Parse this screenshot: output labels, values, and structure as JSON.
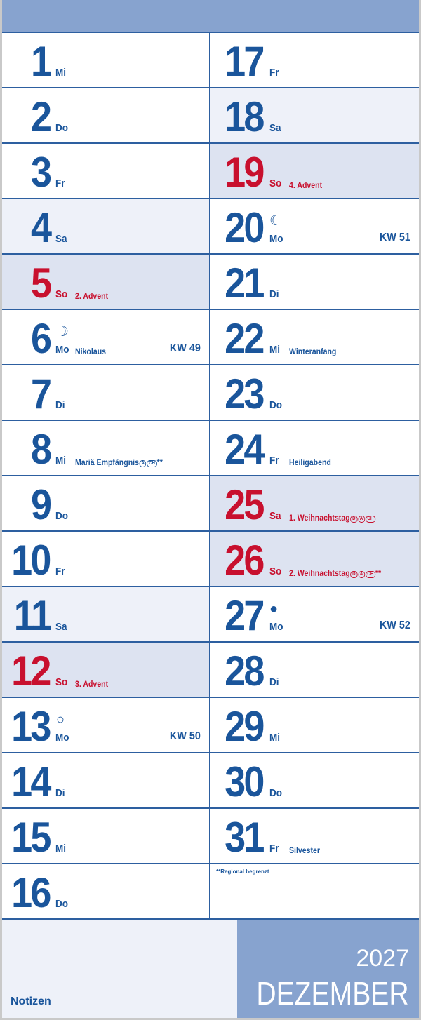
{
  "colors": {
    "blue": "#1a559b",
    "red": "#c8102e",
    "band": "#87a3cf",
    "saturday_bg": "#eef1f9",
    "sunday_bg": "#dde3f1"
  },
  "month": "DEZEMBER",
  "year": "2027",
  "notes_label": "Notizen",
  "footnote": "**Regional begrenzt",
  "days": [
    {
      "num": "1",
      "wd": "Mi"
    },
    {
      "num": "2",
      "wd": "Do"
    },
    {
      "num": "3",
      "wd": "Fr"
    },
    {
      "num": "4",
      "wd": "Sa",
      "type": "sat"
    },
    {
      "num": "5",
      "wd": "So",
      "type": "sun",
      "hol": "2. Advent"
    },
    {
      "num": "6",
      "wd": "Mo",
      "hol": "Nikolaus",
      "kw": "KW 49",
      "moon": "☽"
    },
    {
      "num": "7",
      "wd": "Di"
    },
    {
      "num": "8",
      "wd": "Mi",
      "hol": "Mariä Empfängnis",
      "regions": [
        "A",
        "CH"
      ],
      "star": "**"
    },
    {
      "num": "9",
      "wd": "Do"
    },
    {
      "num": "10",
      "wd": "Fr"
    },
    {
      "num": "11",
      "wd": "Sa",
      "type": "sat"
    },
    {
      "num": "12",
      "wd": "So",
      "type": "sun",
      "hol": "3. Advent"
    },
    {
      "num": "13",
      "wd": "Mo",
      "kw": "KW 50",
      "moon": "○"
    },
    {
      "num": "14",
      "wd": "Di"
    },
    {
      "num": "15",
      "wd": "Mi"
    },
    {
      "num": "16",
      "wd": "Do"
    },
    {
      "num": "17",
      "wd": "Fr"
    },
    {
      "num": "18",
      "wd": "Sa",
      "type": "sat"
    },
    {
      "num": "19",
      "wd": "So",
      "type": "sun",
      "hol": "4. Advent"
    },
    {
      "num": "20",
      "wd": "Mo",
      "kw": "KW 51",
      "moon": "☾"
    },
    {
      "num": "21",
      "wd": "Di"
    },
    {
      "num": "22",
      "wd": "Mi",
      "hol": "Winteranfang"
    },
    {
      "num": "23",
      "wd": "Do"
    },
    {
      "num": "24",
      "wd": "Fr",
      "hol": "Heiligabend"
    },
    {
      "num": "25",
      "wd": "Sa",
      "type": "sun",
      "red": true,
      "hol": "1. Weihnachtstag",
      "regions": [
        "D",
        "A",
        "CH"
      ]
    },
    {
      "num": "26",
      "wd": "So",
      "type": "sun",
      "hol": "2. Weihnachtstag",
      "regions": [
        "D",
        "A",
        "CH"
      ],
      "star": "**"
    },
    {
      "num": "27",
      "wd": "Mo",
      "kw": "KW 52",
      "moon": "●"
    },
    {
      "num": "28",
      "wd": "Di"
    },
    {
      "num": "29",
      "wd": "Mi"
    },
    {
      "num": "30",
      "wd": "Do"
    },
    {
      "num": "31",
      "wd": "Fr",
      "hol": "Silvester"
    }
  ]
}
